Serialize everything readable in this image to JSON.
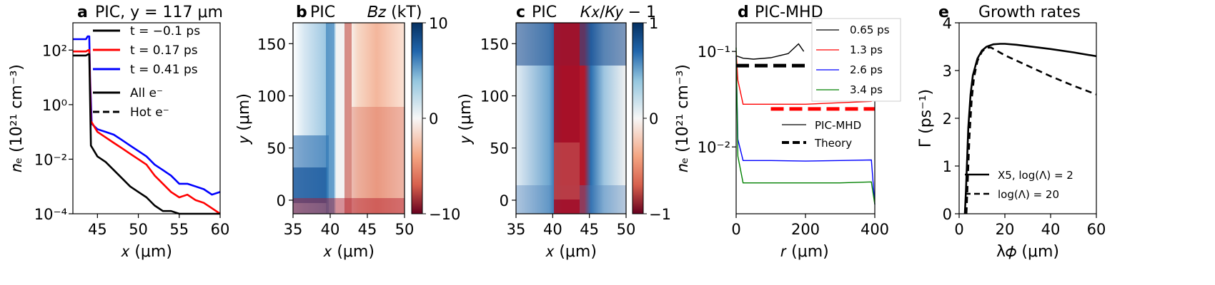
{
  "chart_data": [
    {
      "id": "a",
      "type": "line",
      "panel_letter": "a",
      "title": "PIC, y = 117 μm",
      "xlabel": "x (μm)",
      "ylabel": "n_e (10^21 cm^-3)",
      "xlim": [
        42,
        60
      ],
      "ylim_log10": [
        -4,
        3
      ],
      "x_scale": "linear",
      "y_scale": "log",
      "xticks": [
        "45",
        "50",
        "55",
        "60"
      ],
      "yticks": [
        {
          "label": "10^2",
          "log10": 2
        },
        {
          "label": "10^0",
          "log10": 0
        },
        {
          "label": "10^-2",
          "log10": -2
        },
        {
          "label": "10^-4",
          "log10": -4
        }
      ],
      "legend": {
        "position": "upper-left",
        "entries": [
          {
            "label": "t = −0.1 ps",
            "color": "#000000",
            "style": "solid"
          },
          {
            "label": "t = 0.17 ps",
            "color": "#ff0000",
            "style": "solid"
          },
          {
            "label": "t = 0.41 ps",
            "color": "#0000ff",
            "style": "solid"
          },
          {
            "label": "All e⁻",
            "color": "#000000",
            "style": "solid"
          },
          {
            "label": "Hot e⁻",
            "color": "#000000",
            "style": "dashed"
          }
        ]
      },
      "series": [
        {
          "name": "t = 0.41 ps",
          "color": "#0000ff",
          "x": [
            42,
            43.6,
            43.8,
            44.0,
            44.1,
            44.3,
            45,
            46,
            47,
            48,
            49,
            50,
            51,
            52,
            53,
            54,
            55,
            56,
            57,
            58,
            59,
            60
          ],
          "y_log10": [
            2.4,
            2.4,
            2.5,
            2.5,
            1.0,
            -0.7,
            -0.9,
            -1.0,
            -1.1,
            -1.3,
            -1.5,
            -1.7,
            -1.9,
            -2.2,
            -2.4,
            -2.6,
            -2.9,
            -2.9,
            -3.0,
            -3.1,
            -3.3,
            -3.2
          ]
        },
        {
          "name": "t = 0.17 ps",
          "color": "#ff0000",
          "x": [
            42,
            43.6,
            43.9,
            44.0,
            44.2,
            45,
            46,
            47,
            48,
            49,
            50,
            51,
            52,
            53,
            54,
            55,
            56,
            57,
            58,
            59,
            60
          ],
          "y_log10": [
            1.95,
            1.95,
            2.0,
            2.0,
            -0.6,
            -1.0,
            -1.2,
            -1.4,
            -1.6,
            -1.8,
            -2.0,
            -2.2,
            -2.6,
            -2.9,
            -3.2,
            -3.4,
            -3.3,
            -3.5,
            -3.6,
            -3.8,
            -4.0
          ]
        },
        {
          "name": "t = −0.1 ps",
          "color": "#000000",
          "x": [
            42,
            43.6,
            43.9,
            44.0,
            44.2,
            45,
            46,
            47,
            48,
            49,
            50,
            51,
            52,
            53,
            54,
            55,
            56,
            57,
            58,
            59,
            60
          ],
          "y_log10": [
            1.8,
            1.8,
            1.85,
            1.85,
            -1.5,
            -1.9,
            -2.1,
            -2.4,
            -2.7,
            -3.0,
            -3.2,
            -3.4,
            -3.7,
            -3.9,
            -3.9,
            -4.0,
            -4.0,
            -4.0,
            -4.0,
            -4.0,
            -4.0
          ]
        }
      ]
    },
    {
      "id": "b",
      "type": "heatmap",
      "panel_letter": "b",
      "title": "PIC",
      "colorbar_label": "B_z (kT)",
      "xlabel": "x (μm)",
      "ylabel": "y (μm)",
      "xlim": [
        35,
        50
      ],
      "ylim": [
        -13,
        170
      ],
      "xticks": [
        "35",
        "40",
        "45",
        "50"
      ],
      "yticks": [
        "0",
        "50",
        "100",
        "150"
      ],
      "colormap": "RdBu",
      "colorbar": {
        "min": -10,
        "max": 10,
        "ticks": [
          "10",
          "0",
          "−10"
        ]
      }
    },
    {
      "id": "c",
      "type": "heatmap",
      "panel_letter": "c",
      "title": "PIC",
      "colorbar_label": "K_x/K_y − 1",
      "xlabel": "x (μm)",
      "ylabel": "y (μm)",
      "xlim": [
        35,
        50
      ],
      "ylim": [
        -13,
        170
      ],
      "xticks": [
        "35",
        "40",
        "45",
        "50"
      ],
      "yticks": [
        "0",
        "50",
        "100",
        "150"
      ],
      "colormap": "RdBu",
      "colorbar": {
        "min": -1,
        "max": 1,
        "ticks": [
          "1",
          "0",
          "−1"
        ]
      }
    },
    {
      "id": "d",
      "type": "line",
      "panel_letter": "d",
      "title": "PIC-MHD",
      "xlabel": "r (μm)",
      "ylabel": "n_e (10^21 cm^-3)",
      "xlim": [
        0,
        400
      ],
      "ylim_log10": [
        -2.7,
        -0.7
      ],
      "y_scale": "log",
      "xticks": [
        "0",
        "200",
        "400"
      ],
      "yticks": [
        {
          "label": "10^-1",
          "log10": -1
        },
        {
          "label": "10^-2",
          "log10": -2
        }
      ],
      "legend_times": {
        "position": "upper-right",
        "entries": [
          {
            "label": "0.65 ps",
            "color": "#000000"
          },
          {
            "label": "1.3 ps",
            "color": "#ff0000"
          },
          {
            "label": "2.6 ps",
            "color": "#0000ff"
          },
          {
            "label": "3.4 ps",
            "color": "#008000"
          }
        ]
      },
      "legend_style": {
        "entries": [
          {
            "label": "PIC-MHD",
            "style": "solid"
          },
          {
            "label": "Theory",
            "style": "dashed"
          }
        ]
      },
      "series": [
        {
          "name": "0.65 ps",
          "color": "#000000",
          "x": [
            0,
            20,
            50,
            100,
            150,
            180,
            195
          ],
          "y": [
            0.09,
            0.085,
            0.083,
            0.086,
            0.095,
            0.12,
            0.1
          ]
        },
        {
          "name": "1.3 ps",
          "color": "#ff0000",
          "x": [
            0,
            5,
            20,
            100,
            200,
            300,
            390,
            400
          ],
          "y": [
            0.1,
            0.05,
            0.028,
            0.028,
            0.028,
            0.029,
            0.03,
            0.032
          ]
        },
        {
          "name": "2.6 ps",
          "color": "#0000ff",
          "x": [
            0,
            5,
            20,
            100,
            200,
            300,
            390,
            400
          ],
          "y": [
            0.09,
            0.012,
            0.0072,
            0.0072,
            0.0071,
            0.0072,
            0.0073,
            0.0025
          ]
        },
        {
          "name": "3.4 ps",
          "color": "#008000",
          "x": [
            0,
            5,
            20,
            100,
            200,
            300,
            390,
            400
          ],
          "y": [
            0.11,
            0.008,
            0.0042,
            0.0042,
            0.0042,
            0.0042,
            0.0043,
            0.0025
          ]
        }
      ],
      "theory_lines": [
        {
          "color": "#000000",
          "x": [
            0,
            200
          ],
          "y": 0.071
        },
        {
          "color": "#ff0000",
          "x": [
            100,
            400
          ],
          "y": 0.025
        }
      ]
    },
    {
      "id": "e",
      "type": "line",
      "panel_letter": "e",
      "title": "Growth rates",
      "xlabel": "λ_φ (μm)",
      "ylabel": "Γ (ps^-1)",
      "xlim": [
        0,
        60
      ],
      "ylim": [
        0,
        4
      ],
      "xticks": [
        "0",
        "20",
        "40",
        "60"
      ],
      "yticks": [
        "0",
        "1",
        "2",
        "3",
        "4"
      ],
      "legend": {
        "position": "lower-left",
        "entries": [
          {
            "label": "X5, log(Λ) = 2",
            "style": "solid"
          },
          {
            "label": "log(Λ) = 20",
            "style": "dashed"
          }
        ]
      },
      "series": [
        {
          "name": "X5, log(Λ) = 2",
          "style": "solid",
          "color": "#000000",
          "x": [
            2.5,
            3,
            4,
            5,
            6,
            8,
            10,
            12,
            15,
            18,
            20,
            25,
            30,
            40,
            50,
            60
          ],
          "y": [
            0,
            0.5,
            1.8,
            2.5,
            2.9,
            3.25,
            3.42,
            3.5,
            3.55,
            3.56,
            3.56,
            3.54,
            3.51,
            3.45,
            3.38,
            3.3
          ]
        },
        {
          "name": "log(Λ) = 20",
          "style": "dashed",
          "color": "#000000",
          "x": [
            3.2,
            3.6,
            4.5,
            5.5,
            6.5,
            8,
            10,
            12,
            14,
            20,
            30,
            40,
            50,
            60
          ],
          "y": [
            0,
            0.5,
            1.6,
            2.4,
            2.85,
            3.2,
            3.4,
            3.48,
            3.48,
            3.32,
            3.1,
            2.88,
            2.68,
            2.5
          ]
        }
      ]
    }
  ]
}
